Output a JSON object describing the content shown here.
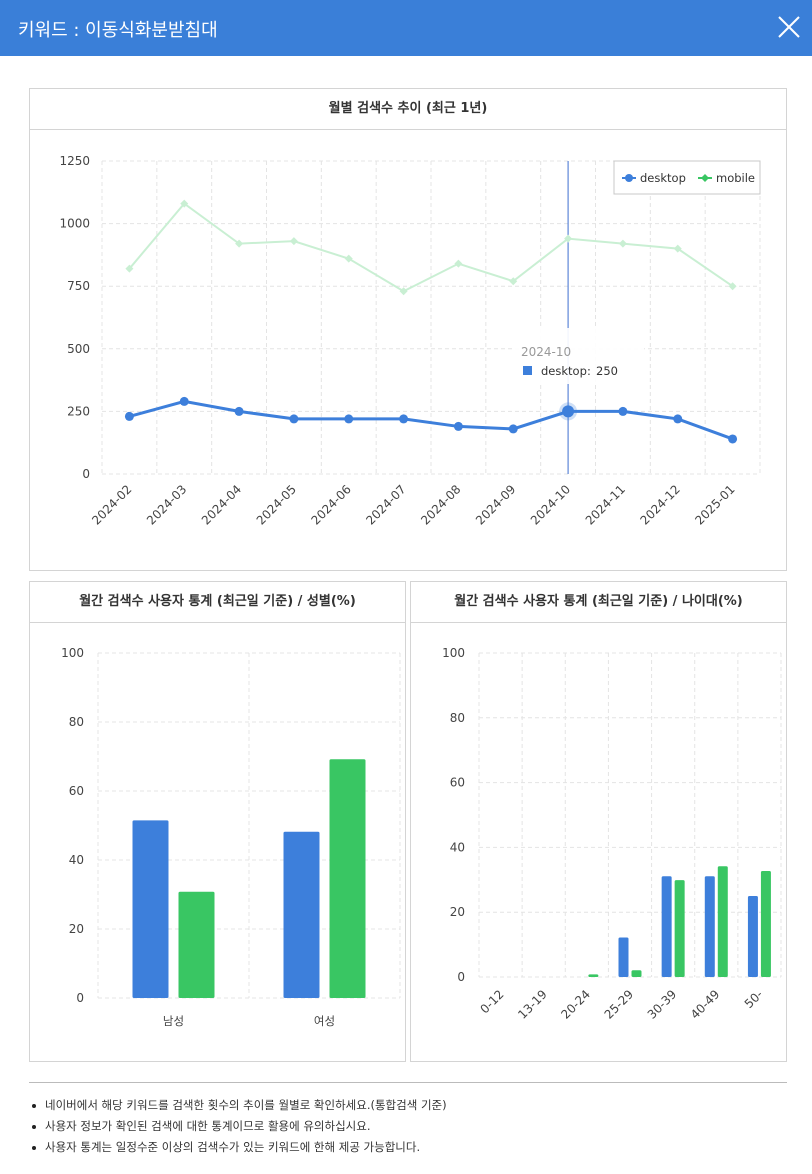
{
  "header": {
    "title": "키워드 : 이동식화분받침대"
  },
  "trend": {
    "title": "월별 검색수 추이 (최근 1년)",
    "tooltip": {
      "period": "2024-10",
      "series": "desktop",
      "value_text": "250",
      "index": 8
    },
    "colors": {
      "desktop": "#3d7fdb",
      "mobile": "#39c663",
      "mobile_faded": "#c9efd3"
    }
  },
  "gender": {
    "title": "월간 검색수 사용자 통계 (최근일 기준) / 성별(%)"
  },
  "age": {
    "title": "월간 검색수 사용자 통계 (최근일 기준) / 나이대(%)"
  },
  "notes": [
    "네이버에서 해당 키워드를 검색한 횟수의 추이를 월별로 확인하세요.(통합검색 기준)",
    "사용자 정보가 확인된 검색에 대한 통계이므로 활용에 유의하십시요.",
    "사용자 통계는 일정수준 이상의 검색수가 있는 키워드에 한해 제공 가능합니다."
  ],
  "chart_data": [
    {
      "type": "line",
      "title": "월별 검색수 추이 (최근 1년)",
      "x": [
        "2024-02",
        "2024-03",
        "2024-04",
        "2024-05",
        "2024-06",
        "2024-07",
        "2024-08",
        "2024-09",
        "2024-10",
        "2024-11",
        "2024-12",
        "2025-01"
      ],
      "series": [
        {
          "name": "desktop",
          "values": [
            230,
            290,
            250,
            220,
            220,
            220,
            190,
            180,
            250,
            250,
            220,
            140
          ]
        },
        {
          "name": "mobile",
          "values": [
            820,
            1080,
            920,
            930,
            860,
            730,
            840,
            770,
            940,
            920,
            900,
            750
          ]
        }
      ],
      "yticks": [
        "0",
        "250",
        "500",
        "750",
        "1000",
        "1250"
      ],
      "ylim": [
        0,
        1250
      ],
      "legend": "top-right",
      "grid": true
    },
    {
      "type": "bar",
      "title": "월간 검색수 사용자 통계 (최근일 기준) / 성별(%)",
      "categories": [
        "남성",
        "여성"
      ],
      "series": [
        {
          "name": "desktop",
          "values": [
            51.5,
            48.2
          ]
        },
        {
          "name": "mobile",
          "values": [
            30.8,
            69.2
          ]
        }
      ],
      "yticks": [
        "0",
        "20",
        "40",
        "60",
        "80",
        "100"
      ],
      "ylim": [
        0,
        100
      ],
      "grid": true
    },
    {
      "type": "bar",
      "title": "월간 검색수 사용자 통계 (최근일 기준) / 나이대(%)",
      "categories": [
        "0-12",
        "13-19",
        "20-24",
        "25-29",
        "30-39",
        "40-49",
        "50-"
      ],
      "series": [
        {
          "name": "desktop",
          "values": [
            0,
            0,
            0,
            12.2,
            31.1,
            31.1,
            25.0
          ]
        },
        {
          "name": "mobile",
          "values": [
            0,
            0,
            0.8,
            2.1,
            29.9,
            34.2,
            32.7
          ]
        }
      ],
      "yticks": [
        "0",
        "20",
        "40",
        "60",
        "80",
        "100"
      ],
      "ylim": [
        0,
        100
      ],
      "grid": true
    }
  ]
}
